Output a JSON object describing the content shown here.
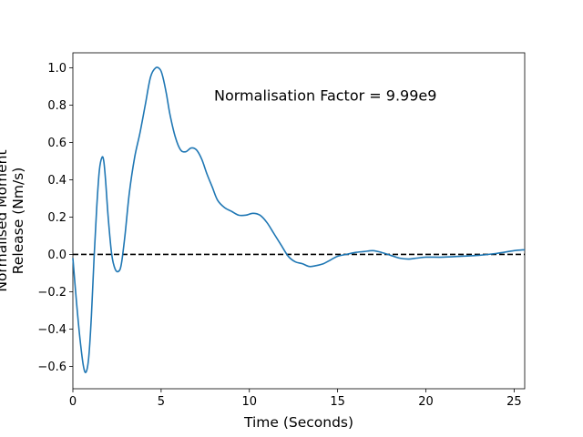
{
  "chart_data": {
    "type": "line",
    "title": "",
    "xlabel": "Time (Seconds)",
    "ylabel_lines": [
      "Normalised Moment",
      "Release (Nm/s)"
    ],
    "xlim": [
      0,
      25.6
    ],
    "ylim": [
      -0.72,
      1.08
    ],
    "xticks": [
      0,
      5,
      10,
      15,
      20,
      25
    ],
    "xtick_labels": [
      "0",
      "5",
      "10",
      "15",
      "20",
      "25"
    ],
    "yticks": [
      -0.6,
      -0.4,
      -0.2,
      0.0,
      0.2,
      0.4,
      0.6,
      0.8,
      1.0
    ],
    "ytick_labels": [
      "−0.6",
      "−0.4",
      "−0.2",
      "0.0",
      "0.2",
      "0.4",
      "0.6",
      "0.8",
      "1.0"
    ],
    "grid": false,
    "annotation": {
      "text": "Normalisation Factor = 9.99e9",
      "x": 8.0,
      "y": 0.82
    },
    "reference_line": {
      "y": 0.0,
      "style": "dashed",
      "color": "#000000"
    },
    "series": [
      {
        "color": "#1f77b4",
        "x": [
          0,
          0.2,
          0.4,
          0.6,
          0.75,
          0.9,
          1.05,
          1.2,
          1.35,
          1.5,
          1.65,
          1.75,
          1.85,
          2.0,
          2.2,
          2.4,
          2.6,
          2.75,
          2.95,
          3.2,
          3.5,
          3.8,
          4.1,
          4.4,
          4.7,
          4.95,
          5.1,
          5.3,
          5.5,
          5.8,
          6.1,
          6.4,
          6.7,
          7.0,
          7.3,
          7.6,
          7.9,
          8.2,
          8.6,
          9.0,
          9.4,
          9.8,
          10.2,
          10.6,
          11.0,
          11.4,
          11.8,
          12.2,
          12.6,
          13.0,
          13.4,
          13.8,
          14.2,
          14.6,
          15.0,
          15.5,
          16.0,
          16.5,
          17.0,
          17.5,
          18.0,
          18.5,
          19.0,
          19.5,
          20.0,
          21.0,
          22.0,
          23.0,
          24.0,
          25.0,
          25.6
        ],
        "y": [
          -0.02,
          -0.25,
          -0.45,
          -0.6,
          -0.63,
          -0.55,
          -0.33,
          -0.02,
          0.25,
          0.45,
          0.52,
          0.5,
          0.4,
          0.2,
          0.0,
          -0.08,
          -0.09,
          -0.05,
          0.1,
          0.33,
          0.52,
          0.65,
          0.8,
          0.95,
          1.0,
          0.99,
          0.95,
          0.86,
          0.75,
          0.63,
          0.56,
          0.55,
          0.57,
          0.56,
          0.51,
          0.43,
          0.36,
          0.29,
          0.25,
          0.23,
          0.21,
          0.21,
          0.22,
          0.21,
          0.17,
          0.11,
          0.05,
          -0.01,
          -0.04,
          -0.05,
          -0.065,
          -0.06,
          -0.05,
          -0.03,
          -0.01,
          0.0,
          0.01,
          0.015,
          0.02,
          0.01,
          -0.005,
          -0.02,
          -0.025,
          -0.02,
          -0.015,
          -0.015,
          -0.01,
          -0.005,
          0.005,
          0.02,
          0.025
        ]
      }
    ]
  }
}
